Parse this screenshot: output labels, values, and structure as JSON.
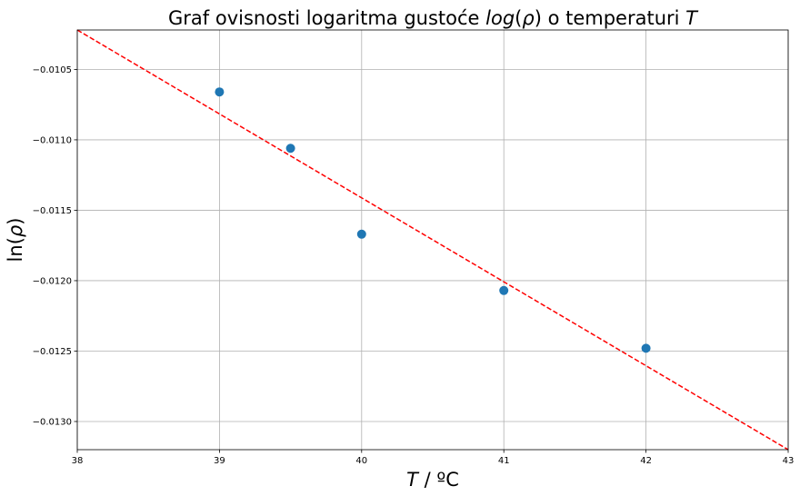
{
  "chart_data": {
    "type": "scatter",
    "title": {
      "prefix": "Graf ovisnosti logaritma gustoće ",
      "math1": "log",
      "math1_paren_open": "(",
      "math1_var": "ρ",
      "math1_paren_close": ")",
      "middle": " o temperaturi ",
      "math2": "T"
    },
    "xlabel": {
      "var": "T",
      "rest": " / ºC"
    },
    "ylabel": {
      "prefix": "ln(",
      "var": "ρ",
      "suffix": ")"
    },
    "xlim": [
      38,
      43
    ],
    "ylim": [
      -0.0132,
      -0.01022
    ],
    "xticks": [
      38,
      39,
      40,
      41,
      42,
      43
    ],
    "xtick_labels": [
      "38",
      "39",
      "40",
      "41",
      "42",
      "43"
    ],
    "yticks": [
      -0.0105,
      -0.011,
      -0.0115,
      -0.012,
      -0.0125,
      -0.013
    ],
    "ytick_labels": [
      "−0.0105",
      "−0.0110",
      "−0.0115",
      "−0.0120",
      "−0.0125",
      "−0.0130"
    ],
    "grid": true,
    "series": [
      {
        "kind": "points",
        "x": [
          39,
          39.5,
          40,
          41,
          42
        ],
        "y": [
          -0.01066,
          -0.01106,
          -0.01167,
          -0.01207,
          -0.01248
        ],
        "color": "#1f77b4"
      },
      {
        "kind": "fit-line",
        "x": [
          38,
          43
        ],
        "y": [
          -0.01022,
          -0.0132
        ],
        "color": "#ff0000",
        "style": "dashed"
      }
    ]
  }
}
